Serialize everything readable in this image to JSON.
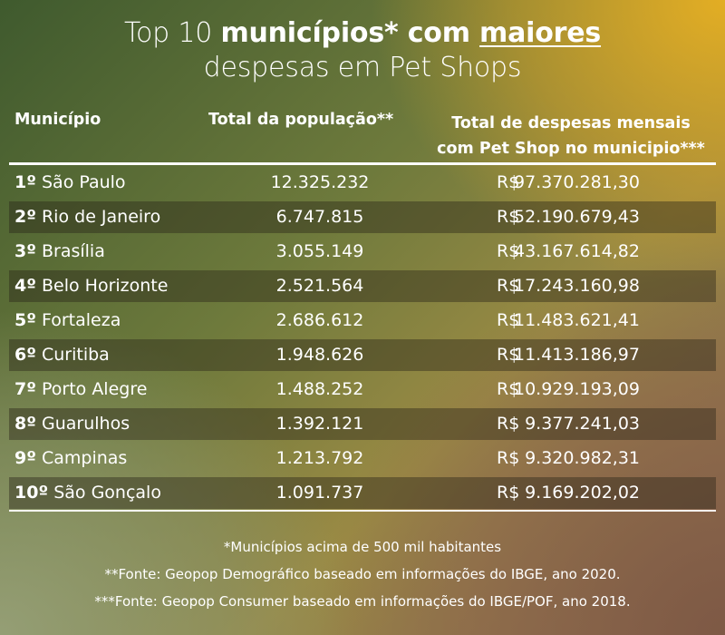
{
  "title": {
    "line1_prefix": "Top 10 ",
    "line1_bold": "municípios* com ",
    "line1_underline": "maiores",
    "line2": "despesas em Pet Shops"
  },
  "table": {
    "headers": {
      "municipio": "Município",
      "populacao": "Total da população**",
      "despesas_line1": "Total de despesas mensais",
      "despesas_line2": "com Pet Shop no municipio***"
    },
    "rows": [
      {
        "rank": "1º",
        "name": "São Paulo",
        "population": "12.325.232",
        "currency": "R$",
        "value": "97.370.281,30"
      },
      {
        "rank": "2º",
        "name": "Rio de Janeiro",
        "population": "6.747.815",
        "currency": "R$",
        "value": "52.190.679,43"
      },
      {
        "rank": "3º",
        "name": "Brasília",
        "population": "3.055.149",
        "currency": "R$",
        "value": "43.167.614,82"
      },
      {
        "rank": "4º",
        "name": "Belo Horizonte",
        "population": "2.521.564",
        "currency": "R$",
        "value": "17.243.160,98"
      },
      {
        "rank": "5º",
        "name": "Fortaleza",
        "population": "2.686.612",
        "currency": "R$",
        "value": "11.483.621,41"
      },
      {
        "rank": "6º",
        "name": "Curitiba",
        "population": "1.948.626",
        "currency": "R$",
        "value": "11.413.186,97"
      },
      {
        "rank": "7º",
        "name": "Porto Alegre",
        "population": "1.488.252",
        "currency": "R$",
        "value": "10.929.193,09"
      },
      {
        "rank": "8º",
        "name": "Guarulhos",
        "population": "1.392.121",
        "currency": "R$",
        "value": "9.377.241,03"
      },
      {
        "rank": "9º",
        "name": "Campinas",
        "population": "1.213.792",
        "currency": "R$",
        "value": "9.320.982,31"
      },
      {
        "rank": "10º",
        "name": "São Gonçalo",
        "population": "1.091.737",
        "currency": "R$",
        "value": "9.169.202,02"
      }
    ]
  },
  "notes": {
    "note1": "*Municípios acima de 500 mil habitantes",
    "note2": "**Fonte: Geopop Demográfico baseado em informações do IBGE, ano 2020.",
    "note3": "***Fonte: Geopop Consumer baseado em informações do IBGE/POF, ano 2018."
  }
}
